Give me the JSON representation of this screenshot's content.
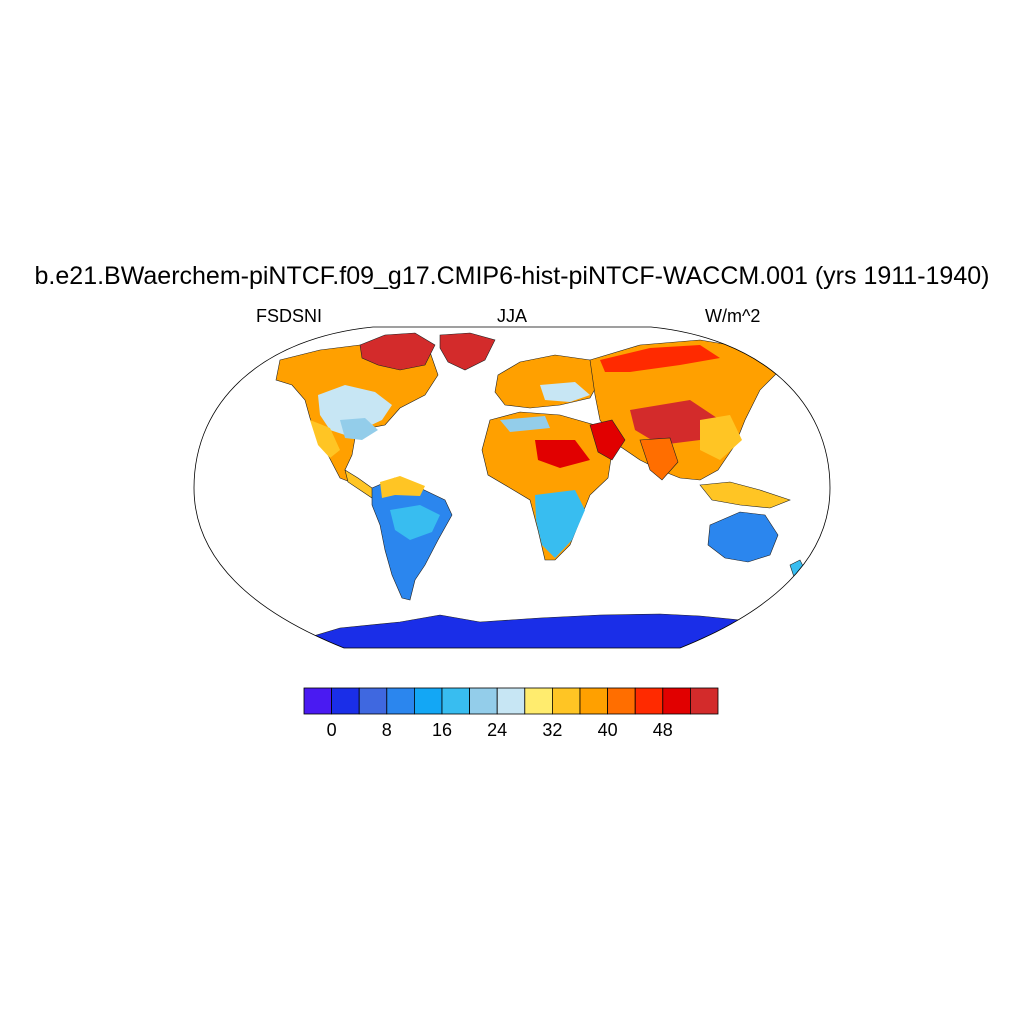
{
  "title": "b.e21.BWaerchem-piNTCF.f09_g17.CMIP6-hist-piNTCF-WACCM.001 (yrs 1911-1940)",
  "left_label": "FSDSNI",
  "center_label": "JJA",
  "right_label": "W/m^2",
  "colorbar": {
    "colors": [
      "#4a1af2",
      "#1a2ee8",
      "#3f68e0",
      "#2b86ee",
      "#13a7f5",
      "#38bdf0",
      "#93cdea",
      "#c7e6f4",
      "#ffec6e",
      "#ffc524",
      "#ffa000",
      "#ff6e00",
      "#ff2a00",
      "#e10000",
      "#d32b2b"
    ],
    "labels": [
      "0",
      "8",
      "16",
      "24",
      "32",
      "40",
      "48"
    ]
  },
  "chart_data": {
    "type": "heatmap",
    "title": "b.e21.BWaerchem-piNTCF.f09_g17.CMIP6-hist-piNTCF-WACCM.001 (yrs 1911-1940)",
    "variable": "FSDSNI",
    "season": "JJA",
    "units": "W/m^2",
    "levels": [
      0,
      4,
      8,
      12,
      16,
      20,
      24,
      28,
      32,
      36,
      40,
      44,
      48,
      52
    ],
    "tick_labels": [
      "0",
      "8",
      "16",
      "24",
      "32",
      "40",
      "48"
    ]
  }
}
